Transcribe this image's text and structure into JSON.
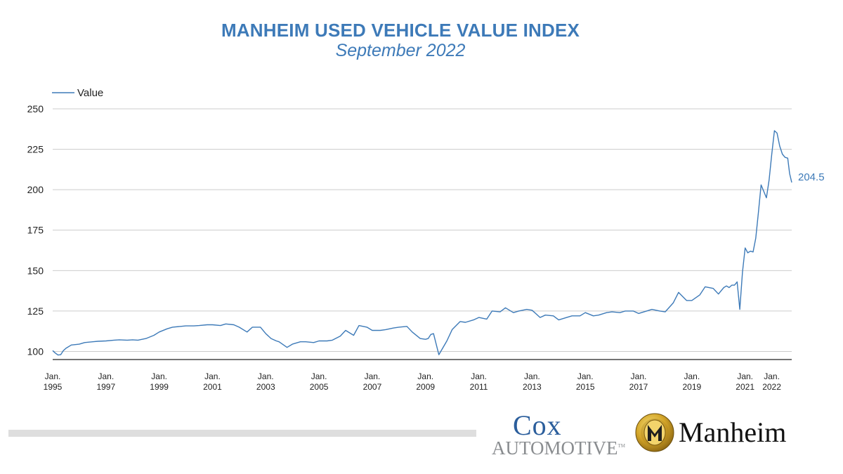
{
  "header": {
    "title": "MANHEIM USED VEHICLE VALUE INDEX",
    "subtitle": "September 2022"
  },
  "colors": {
    "accent": "#3d7ab8",
    "series_line": "#3d7ab8",
    "grid": "#cccccc",
    "axis": "#222222",
    "footer_bar": "#dedede",
    "cox_blue": "#2b5e9c",
    "cox_gray": "#8a8d90",
    "manheim_gold": "#c9a227"
  },
  "logos": {
    "cox_line1": "Cox",
    "cox_line2": "AUTOMOTIVE",
    "cox_tm": "TM",
    "manheim": "Manheim",
    "manheim_icon": "manheim-m-emblem"
  },
  "chart_data": {
    "type": "line",
    "title": "MANHEIM USED VEHICLE VALUE INDEX",
    "subtitle": "September 2022",
    "xlabel": "",
    "ylabel": "",
    "legend": "top-left",
    "grid": true,
    "ylim": [
      95,
      250
    ],
    "y_ticks": [
      100,
      125,
      150,
      175,
      200,
      225,
      250
    ],
    "x_range": [
      1995.0,
      2022.75
    ],
    "x_ticks": [
      {
        "x": 1995,
        "line1": "Jan.",
        "line2": "1995"
      },
      {
        "x": 1997,
        "line1": "Jan.",
        "line2": "1997"
      },
      {
        "x": 1999,
        "line1": "Jan.",
        "line2": "1999"
      },
      {
        "x": 2001,
        "line1": "Jan.",
        "line2": "2001"
      },
      {
        "x": 2003,
        "line1": "Jan.",
        "line2": "2003"
      },
      {
        "x": 2005,
        "line1": "Jan.",
        "line2": "2005"
      },
      {
        "x": 2007,
        "line1": "Jan.",
        "line2": "2007"
      },
      {
        "x": 2009,
        "line1": "Jan.",
        "line2": "2009"
      },
      {
        "x": 2011,
        "line1": "Jan.",
        "line2": "2011"
      },
      {
        "x": 2013,
        "line1": "Jan.",
        "line2": "2013"
      },
      {
        "x": 2015,
        "line1": "Jan.",
        "line2": "2015"
      },
      {
        "x": 2017,
        "line1": "Jan.",
        "line2": "2017"
      },
      {
        "x": 2019,
        "line1": "Jan.",
        "line2": "2019"
      },
      {
        "x": 2021,
        "line1": "Jan.",
        "line2": "2021"
      },
      {
        "x": 2022,
        "line1": "Jan.",
        "line2": "2022"
      }
    ],
    "series": [
      {
        "name": "Value",
        "end_label": "204.5",
        "x": [
          1995.0,
          1995.1,
          1995.2,
          1995.3,
          1995.4,
          1995.5,
          1995.7,
          1996.0,
          1996.2,
          1996.5,
          1996.7,
          1997.0,
          1997.3,
          1997.5,
          1997.8,
          1998.0,
          1998.2,
          1998.5,
          1998.8,
          1999.0,
          1999.3,
          1999.5,
          1999.8,
          2000.0,
          2000.3,
          2000.5,
          2000.8,
          2001.0,
          2001.3,
          2001.5,
          2001.8,
          2002.0,
          2002.3,
          2002.5,
          2002.8,
          2003.0,
          2003.2,
          2003.4,
          2003.5,
          2003.8,
          2004.0,
          2004.3,
          2004.5,
          2004.8,
          2005.0,
          2005.3,
          2005.5,
          2005.8,
          2006.0,
          2006.3,
          2006.5,
          2006.8,
          2007.0,
          2007.3,
          2007.5,
          2007.8,
          2008.0,
          2008.3,
          2008.5,
          2008.8,
          2009.0,
          2009.1,
          2009.2,
          2009.3,
          2009.5,
          2009.8,
          2010.0,
          2010.3,
          2010.5,
          2010.8,
          2011.0,
          2011.3,
          2011.5,
          2011.8,
          2012.0,
          2012.3,
          2012.5,
          2012.8,
          2013.0,
          2013.3,
          2013.5,
          2013.8,
          2014.0,
          2014.3,
          2014.5,
          2014.8,
          2015.0,
          2015.3,
          2015.5,
          2015.8,
          2016.0,
          2016.3,
          2016.5,
          2016.8,
          2017.0,
          2017.3,
          2017.5,
          2017.8,
          2018.0,
          2018.3,
          2018.5,
          2018.8,
          2019.0,
          2019.3,
          2019.5,
          2019.8,
          2020.0,
          2020.2,
          2020.3,
          2020.4,
          2020.5,
          2020.6,
          2020.7,
          2020.8,
          2020.9,
          2021.0,
          2021.1,
          2021.2,
          2021.3,
          2021.4,
          2021.5,
          2021.6,
          2021.7,
          2021.8,
          2021.9,
          2022.0,
          2022.1,
          2022.2,
          2022.3,
          2022.4,
          2022.5,
          2022.6,
          2022.67,
          2022.75
        ],
        "values": [
          100.5,
          99.0,
          97.8,
          98.0,
          100.5,
          102.0,
          104.0,
          104.5,
          105.5,
          106.0,
          106.3,
          106.5,
          107.0,
          107.2,
          107.0,
          107.2,
          107.0,
          108.0,
          110.0,
          112.0,
          114.0,
          115.0,
          115.5,
          115.8,
          115.8,
          116.0,
          116.5,
          116.5,
          116.0,
          117.0,
          116.5,
          115.0,
          112.0,
          115.0,
          115.0,
          111.0,
          108.0,
          106.5,
          106.0,
          102.5,
          104.5,
          106.0,
          106.0,
          105.5,
          106.5,
          106.5,
          107.0,
          109.5,
          113.0,
          110.0,
          116.0,
          115.0,
          113.0,
          113.0,
          113.5,
          114.5,
          115.0,
          115.5,
          112.0,
          108.0,
          107.5,
          108.0,
          110.5,
          111.0,
          98.0,
          106.5,
          113.5,
          118.5,
          118.0,
          119.5,
          121.0,
          120.0,
          125.0,
          124.5,
          127.0,
          124.0,
          125.0,
          126.0,
          125.5,
          121.0,
          122.5,
          122.0,
          119.5,
          121.0,
          122.0,
          122.0,
          124.0,
          122.0,
          122.5,
          124.0,
          124.5,
          124.0,
          125.0,
          125.0,
          123.5,
          125.0,
          126.0,
          125.0,
          124.5,
          130.0,
          136.5,
          131.5,
          131.5,
          135.0,
          140.0,
          139.0,
          135.5,
          139.5,
          140.5,
          139.5,
          141.0,
          141.0,
          143.0,
          126.0,
          149.0,
          164.0,
          161.0,
          162.0,
          161.5,
          170.0,
          186.0,
          203.0,
          199.0,
          195.0,
          206.0,
          222.0,
          236.5,
          235.0,
          227.0,
          222.0,
          220.0,
          219.5,
          210.0,
          204.5
        ]
      }
    ]
  }
}
